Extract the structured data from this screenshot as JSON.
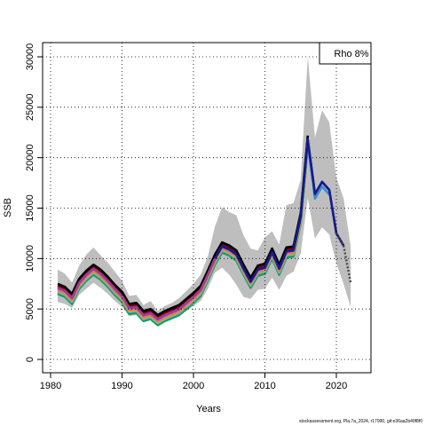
{
  "chart_data": {
    "type": "line",
    "title": "",
    "xlabel": "Years",
    "ylabel": "SSB",
    "xlim": [
      1980,
      2024
    ],
    "ylim": [
      0,
      30000
    ],
    "xticks": [
      1980,
      1990,
      2000,
      2010,
      2020
    ],
    "yticks": [
      0,
      5000,
      10000,
      15000,
      20000,
      25000,
      30000
    ],
    "xtick_labels": [
      "1980",
      "1990",
      "2000",
      "2010",
      "2020"
    ],
    "ytick_labels": [
      "0",
      "5000",
      "10000",
      "15000",
      "20000",
      "25000",
      "30000"
    ],
    "grid": true,
    "legend_label": "Rho 8%",
    "legend_position": "top-right",
    "footer": "stockassessment.org, Pla.7a_2024, r17990, git:e36aa2b49f8f0",
    "band": {
      "color": "#bebebe",
      "x": [
        1981,
        1982,
        1983,
        1984,
        1985,
        1986,
        1987,
        1988,
        1989,
        1990,
        1991,
        1992,
        1993,
        1994,
        1995,
        1996,
        1997,
        1998,
        1999,
        2000,
        2001,
        2002,
        2003,
        2004,
        2005,
        2006,
        2007,
        2008,
        2009,
        2010,
        2011,
        2012,
        2013,
        2014,
        2015,
        2016,
        2017,
        2018,
        2019,
        2020,
        2021,
        2022
      ],
      "lower": [
        5700,
        5500,
        5100,
        6400,
        7000,
        7600,
        7100,
        6500,
        5800,
        5200,
        4300,
        4400,
        3700,
        3900,
        3300,
        3700,
        4000,
        4300,
        4800,
        5300,
        5800,
        7000,
        8600,
        9100,
        8400,
        7400,
        6200,
        6000,
        6900,
        7000,
        8100,
        6900,
        8300,
        8700,
        10500,
        16000,
        12000,
        13100,
        12400,
        9500,
        7500,
        5200
      ],
      "upper": [
        8900,
        8500,
        7600,
        9300,
        10400,
        11100,
        10300,
        9600,
        8700,
        7800,
        6300,
        6400,
        5400,
        5800,
        4800,
        5300,
        5600,
        6100,
        6800,
        7500,
        8400,
        10200,
        13200,
        15100,
        14600,
        14300,
        12300,
        11000,
        10800,
        12100,
        12700,
        11400,
        15300,
        15500,
        17800,
        30000,
        22000,
        24700,
        23500,
        18000,
        16000,
        11200
      ]
    },
    "x": [
      1981,
      1982,
      1983,
      1984,
      1985,
      1986,
      1987,
      1988,
      1989,
      1990,
      1991,
      1992,
      1993,
      1994,
      1995,
      1996,
      1997,
      1998,
      1999,
      2000,
      2001,
      2002,
      2003,
      2004,
      2005,
      2006,
      2007,
      2008,
      2009,
      2010,
      2011,
      2012,
      2013,
      2014,
      2015,
      2016,
      2017,
      2018,
      2019,
      2020,
      2021,
      2022
    ],
    "series": [
      {
        "color": "#00a65f",
        "offset": -600,
        "end": 2016
      },
      {
        "color": "#3a8fd0",
        "offset": -450,
        "end": 2019
      },
      {
        "color": "#b5c22a",
        "offset": -350,
        "end": 2016
      },
      {
        "color": "#d98a3a",
        "offset": -250,
        "end": 2015
      },
      {
        "color": "#c07aa8",
        "offset": -150,
        "end": 2014
      },
      {
        "color": "#ff2a6a",
        "offset": 0,
        "end": 2014
      },
      {
        "color": "#800000",
        "offset": 200,
        "end": 2015
      },
      {
        "color": "#000000",
        "offset": 400,
        "end": 2016
      },
      {
        "color": "#3050c0",
        "offset": 0,
        "end": 2021
      },
      {
        "color": "#1a1a8a",
        "offset": 0,
        "end": 2021
      },
      {
        "color": "#a83a8a",
        "offset": 0,
        "end": 2003
      }
    ],
    "main_values": [
      7100,
      6800,
      6100,
      7600,
      8400,
      9000,
      8500,
      7800,
      7000,
      6300,
      5100,
      5200,
      4400,
      4600,
      4000,
      4400,
      4700,
      5000,
      5600,
      6200,
      6900,
      8400,
      10000,
      11200,
      10900,
      10400,
      9000,
      7700,
      8900,
      9100,
      10600,
      9000,
      10700,
      10800,
      14100,
      21800,
      16400,
      17600,
      16800,
      12500,
      11300,
      7600
    ],
    "dotted_tail": {
      "color": "#444444",
      "x": [
        2020,
        2021,
        2022
      ],
      "values": [
        12500,
        11300,
        7600
      ]
    }
  }
}
